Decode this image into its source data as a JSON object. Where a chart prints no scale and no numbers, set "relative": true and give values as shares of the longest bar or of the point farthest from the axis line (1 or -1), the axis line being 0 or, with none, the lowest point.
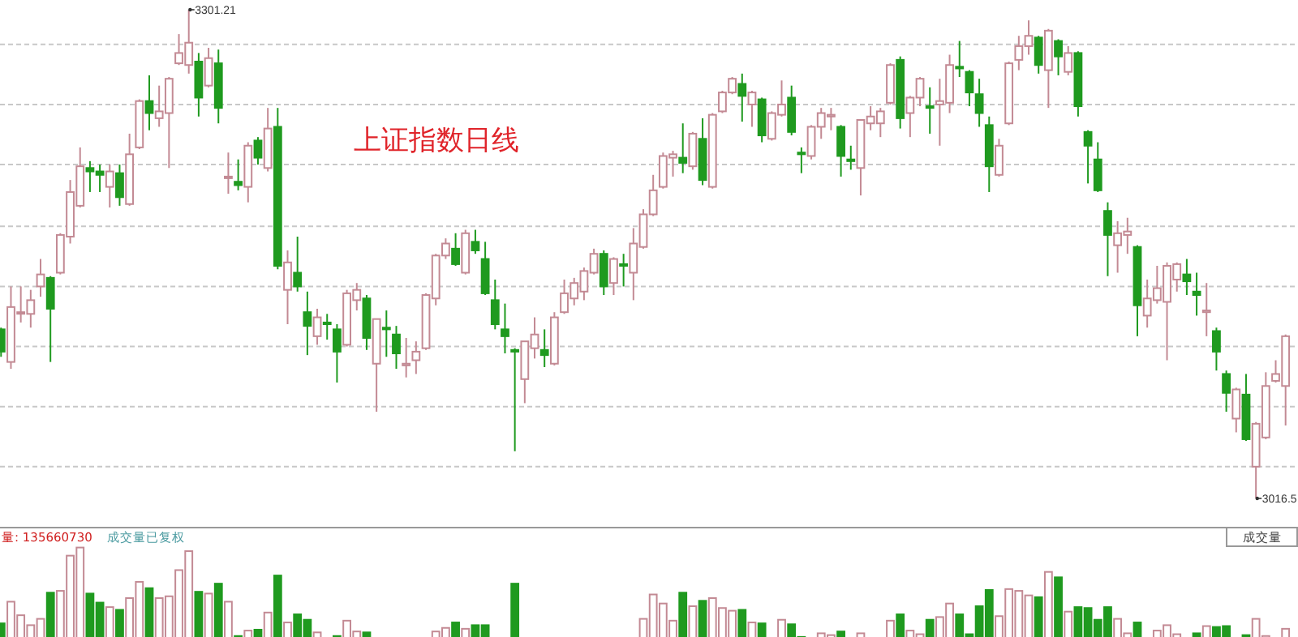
{
  "chart_data": [
    {
      "type": "candlestick",
      "title": "上证指数日线",
      "tick_labels": false,
      "grid": "y",
      "yticks": [
        {
          "value": 3281,
          "label": null
        },
        {
          "value": 3246,
          "label": null
        },
        {
          "value": 3211,
          "label": null
        },
        {
          "value": 3175,
          "label": null
        },
        {
          "value": 3140,
          "label": null
        },
        {
          "value": 3105,
          "label": null
        },
        {
          "value": 3070,
          "label": null
        },
        {
          "value": 3035,
          "label": null
        }
      ],
      "categories": [
        null,
        null,
        null,
        null,
        null,
        null,
        null,
        null,
        null,
        null,
        null,
        null,
        null,
        null,
        null,
        null,
        null,
        null,
        null,
        null,
        null,
        null,
        null,
        null,
        null,
        null,
        null,
        null,
        null,
        null,
        null,
        null,
        null,
        null,
        null,
        null,
        null,
        null,
        null,
        null,
        null,
        null,
        null,
        null,
        null,
        null,
        null,
        null,
        null,
        null,
        null,
        null,
        null,
        null,
        null,
        null,
        null,
        null,
        null,
        null,
        null,
        null,
        null,
        null,
        null,
        null,
        null,
        null,
        null,
        null,
        null,
        null,
        null,
        null,
        null,
        null,
        null,
        null,
        null,
        null,
        null,
        null,
        null,
        null,
        null,
        null,
        null,
        null,
        null,
        null,
        null,
        null,
        null,
        null,
        null,
        null,
        null,
        null,
        null,
        null,
        null,
        null,
        null,
        null,
        null,
        null,
        null,
        null,
        null,
        null,
        null,
        null,
        null,
        null,
        null,
        null,
        null,
        null,
        null,
        null,
        null,
        null,
        null,
        null,
        null,
        null,
        null,
        null,
        null,
        null,
        null
      ],
      "ohlc": [
        [
          3115,
          3116,
          3099,
          3102
        ],
        [
          3096,
          3140,
          3092,
          3128
        ],
        [
          3125,
          3140,
          3119,
          3125
        ],
        [
          3124,
          3138,
          3116,
          3132
        ],
        [
          3140,
          3156,
          3134,
          3147
        ],
        [
          3145,
          3146,
          3096,
          3127
        ],
        [
          3148,
          3171,
          3147,
          3170
        ],
        [
          3169,
          3202,
          3165,
          3195
        ],
        [
          3187,
          3221,
          3186,
          3210
        ],
        [
          3209,
          3213,
          3195,
          3207
        ],
        [
          3207,
          3211,
          3195,
          3205
        ],
        [
          3198,
          3211,
          3186,
          3207
        ],
        [
          3206,
          3211,
          3187,
          3192
        ],
        [
          3188,
          3229,
          3187,
          3217
        ],
        [
          3221,
          3249,
          3220,
          3248
        ],
        [
          3248,
          3263,
          3231,
          3241
        ],
        [
          3238,
          3257,
          3233,
          3242
        ],
        [
          3241,
          3262,
          3209,
          3261
        ],
        [
          3270,
          3287,
          3269,
          3276
        ],
        [
          3269,
          3301.21,
          3264,
          3282
        ],
        [
          3271,
          3276,
          3239,
          3250
        ],
        [
          3257,
          3279,
          3256,
          3273
        ],
        [
          3270,
          3278,
          3235,
          3244
        ],
        [
          3204,
          3218,
          3194,
          3204
        ],
        [
          3201,
          3214,
          3196,
          3199
        ],
        [
          3198,
          3224,
          3189,
          3222
        ],
        [
          3225,
          3227,
          3211,
          3215
        ],
        [
          3209,
          3244,
          3207,
          3232
        ],
        [
          3233,
          3244,
          3150,
          3152
        ],
        [
          3138,
          3161,
          3118,
          3154
        ],
        [
          3148,
          3169,
          3137,
          3140
        ],
        [
          3125,
          3137,
          3100,
          3117
        ],
        [
          3111,
          3127,
          3106,
          3122
        ],
        [
          3119,
          3124,
          3109,
          3118
        ],
        [
          3115,
          3118,
          3084,
          3102
        ],
        [
          3106,
          3138,
          3105,
          3136
        ],
        [
          3132,
          3142,
          3126,
          3138
        ],
        [
          3133,
          3135,
          3103,
          3110
        ],
        [
          3095,
          3121,
          3067,
          3121
        ],
        [
          3116,
          3126,
          3099,
          3115
        ],
        [
          3112,
          3117,
          3092,
          3101
        ],
        [
          3094,
          3110,
          3087,
          3095
        ],
        [
          3097,
          3108,
          3089,
          3102
        ],
        [
          3104,
          3136,
          3103,
          3135
        ],
        [
          3133,
          3159,
          3129,
          3158
        ],
        [
          3158,
          3168,
          3156,
          3165
        ],
        [
          3162,
          3171,
          3152,
          3153
        ],
        [
          3148,
          3173,
          3147,
          3171
        ],
        [
          3166,
          3173,
          3159,
          3161
        ],
        [
          3156,
          3166,
          3135,
          3136
        ],
        [
          3132,
          3144,
          3115,
          3118
        ],
        [
          3115,
          3130,
          3101,
          3111
        ],
        [
          3103,
          3104,
          3044,
          3102
        ],
        [
          3086,
          3108,
          3072,
          3108
        ],
        [
          3104,
          3122,
          3098,
          3112
        ],
        [
          3103,
          3115,
          3093,
          3100
        ],
        [
          3095,
          3125,
          3094,
          3122
        ],
        [
          3125,
          3144,
          3124,
          3136
        ],
        [
          3133,
          3145,
          3129,
          3142
        ],
        [
          3137,
          3151,
          3132,
          3149
        ],
        [
          3148,
          3162,
          3147,
          3159
        ],
        [
          3159,
          3161,
          3135,
          3140
        ],
        [
          3142,
          3157,
          3135,
          3156
        ],
        [
          3153,
          3159,
          3140,
          3152
        ],
        [
          3148,
          3174,
          3132,
          3165
        ],
        [
          3163,
          3185,
          3162,
          3182
        ],
        [
          3182,
          3205,
          3181,
          3196
        ],
        [
          3198,
          3218,
          3197,
          3216
        ],
        [
          3215,
          3219,
          3204,
          3217
        ],
        [
          3215,
          3235,
          3206,
          3212
        ],
        [
          3210,
          3230,
          3208,
          3229
        ],
        [
          3226,
          3238,
          3199,
          3202
        ],
        [
          3198,
          3241,
          3197,
          3240
        ],
        [
          3242,
          3254,
          3241,
          3253
        ],
        [
          3253,
          3262,
          3252,
          3261
        ],
        [
          3258,
          3264,
          3236,
          3251
        ],
        [
          3246,
          3254,
          3233,
          3253
        ],
        [
          3249,
          3250,
          3224,
          3228
        ],
        [
          3226,
          3242,
          3225,
          3241
        ],
        [
          3240,
          3260,
          3239,
          3246
        ],
        [
          3250,
          3257,
          3228,
          3230
        ],
        [
          3218,
          3221,
          3206,
          3217
        ],
        [
          3216,
          3234,
          3214,
          3233
        ],
        [
          3233,
          3244,
          3226,
          3241
        ],
        [
          3239,
          3244,
          3231,
          3240
        ],
        [
          3233,
          3234,
          3204,
          3216
        ],
        [
          3214,
          3222,
          3208,
          3213
        ],
        [
          3209,
          3237,
          3193,
          3237
        ],
        [
          3235,
          3245,
          3231,
          3239
        ],
        [
          3235,
          3244,
          3227,
          3242
        ],
        [
          3247,
          3270,
          3246,
          3269
        ],
        [
          3272,
          3274,
          3232,
          3238
        ],
        [
          3241,
          3251,
          3227,
          3250
        ],
        [
          3250,
          3262,
          3245,
          3261
        ],
        [
          3245,
          3256,
          3229,
          3244
        ],
        [
          3246,
          3261,
          3222,
          3248
        ],
        [
          3247,
          3275,
          3241,
          3269
        ],
        [
          3268,
          3283,
          3262,
          3267
        ],
        [
          3265,
          3266,
          3245,
          3253
        ],
        [
          3252,
          3261,
          3233,
          3241
        ],
        [
          3234,
          3239,
          3195,
          3210
        ],
        [
          3205,
          3226,
          3204,
          3222
        ],
        [
          3235,
          3271,
          3234,
          3270
        ],
        [
          3272,
          3286,
          3266,
          3280
        ],
        [
          3280,
          3295,
          3275,
          3286
        ],
        [
          3285,
          3286,
          3264,
          3269
        ],
        [
          3266,
          3290,
          3244,
          3289
        ],
        [
          3283,
          3284,
          3263,
          3274
        ],
        [
          3265,
          3280,
          3263,
          3276
        ],
        [
          3276,
          3277,
          3239,
          3245
        ],
        [
          3230,
          3231,
          3200,
          3222
        ],
        [
          3214,
          3224,
          3195,
          3196
        ],
        [
          3184,
          3189,
          3146,
          3170
        ],
        [
          3164,
          3178,
          3148,
          3171
        ],
        [
          3170,
          3180,
          3159,
          3172
        ],
        [
          3163,
          3164,
          3111,
          3129
        ],
        [
          3123,
          3144,
          3116,
          3133
        ],
        [
          3132,
          3152,
          3130,
          3139
        ],
        [
          3131,
          3154,
          3097,
          3152
        ],
        [
          3144,
          3154,
          3137,
          3153
        ],
        [
          3147,
          3156,
          3135,
          3143
        ],
        [
          3137,
          3148,
          3123,
          3135
        ],
        [
          3125,
          3142,
          3111,
          3126
        ],
        [
          3114,
          3116,
          3091,
          3102
        ],
        [
          3089,
          3091,
          3067,
          3078
        ],
        [
          3063,
          3081,
          3055,
          3080
        ],
        [
          3077,
          3089,
          3050,
          3051
        ],
        [
          3035,
          3061,
          3016.5,
          3060
        ],
        [
          3052,
          3090,
          3051,
          3082
        ],
        [
          3085,
          3097,
          3084,
          3089
        ],
        [
          3082,
          3112,
          3059,
          3111
        ]
      ],
      "colors": [
        "#1f9a1f",
        "#c38a94",
        "#c38a94",
        "#c38a94",
        "#c38a94",
        "#1f9a1f",
        "#c38a94",
        "#c38a94",
        "#c38a94",
        "#1f9a1f",
        "#1f9a1f",
        "#c38a94",
        "#1f9a1f",
        "#c38a94",
        "#c38a94",
        "#1f9a1f",
        "#c38a94",
        "#c38a94",
        "#c38a94",
        "#c38a94",
        "#1f9a1f",
        "#c38a94",
        "#1f9a1f",
        "#c38a94",
        "#1f9a1f",
        "#c38a94",
        "#1f9a1f",
        "#c38a94",
        "#1f9a1f",
        "#c38a94",
        "#1f9a1f",
        "#1f9a1f",
        "#c38a94",
        "#1f9a1f",
        "#1f9a1f",
        "#c38a94",
        "#c38a94",
        "#1f9a1f",
        "#c38a94",
        "#1f9a1f",
        "#1f9a1f",
        "#c38a94",
        "#c38a94",
        "#c38a94",
        "#c38a94",
        "#c38a94",
        "#1f9a1f",
        "#c38a94",
        "#1f9a1f",
        "#1f9a1f",
        "#1f9a1f",
        "#1f9a1f",
        "#1f9a1f",
        "#c38a94",
        "#c38a94",
        "#1f9a1f",
        "#c38a94",
        "#c38a94",
        "#c38a94",
        "#c38a94",
        "#c38a94",
        "#1f9a1f",
        "#c38a94",
        "#1f9a1f",
        "#c38a94",
        "#c38a94",
        "#c38a94",
        "#c38a94",
        "#c38a94",
        "#1f9a1f",
        "#c38a94",
        "#1f9a1f",
        "#c38a94",
        "#c38a94",
        "#c38a94",
        "#1f9a1f",
        "#c38a94",
        "#1f9a1f",
        "#c38a94",
        "#c38a94",
        "#1f9a1f",
        "#1f9a1f",
        "#c38a94",
        "#c38a94",
        "#c38a94",
        "#1f9a1f",
        "#1f9a1f",
        "#c38a94",
        "#c38a94",
        "#c38a94",
        "#c38a94",
        "#1f9a1f",
        "#c38a94",
        "#c38a94",
        "#1f9a1f",
        "#c38a94",
        "#c38a94",
        "#1f9a1f",
        "#1f9a1f",
        "#1f9a1f",
        "#1f9a1f",
        "#c38a94",
        "#c38a94",
        "#c38a94",
        "#c38a94",
        "#1f9a1f",
        "#c38a94",
        "#1f9a1f",
        "#c38a94",
        "#1f9a1f",
        "#1f9a1f",
        "#1f9a1f",
        "#1f9a1f",
        "#c38a94",
        "#c38a94",
        "#1f9a1f",
        "#c38a94",
        "#c38a94",
        "#c38a94",
        "#c38a94",
        "#1f9a1f",
        "#1f9a1f",
        "#c38a94",
        "#1f9a1f",
        "#1f9a1f",
        "#c38a94",
        "#1f9a1f",
        "#c38a94",
        "#c38a94",
        "#c38a94",
        "#c38a94"
      ],
      "annotations": [
        "3301.21",
        "3016.5"
      ]
    },
    {
      "type": "bar",
      "relative": true,
      "categories": [
        null,
        null,
        null,
        null,
        null,
        null,
        null,
        null,
        null,
        null,
        null,
        null,
        null,
        null,
        null,
        null,
        null,
        null,
        null,
        null,
        null,
        null,
        null,
        null,
        null,
        null,
        null,
        null,
        null,
        null,
        null,
        null,
        null,
        null,
        null,
        null,
        null,
        null,
        null,
        null,
        null,
        null,
        null,
        null,
        null,
        null,
        null,
        null,
        null,
        null,
        null,
        null,
        null,
        null,
        null,
        null,
        null,
        null,
        null,
        null,
        null,
        null,
        null,
        null,
        null,
        null,
        null,
        null,
        null,
        null,
        null,
        null,
        null,
        null,
        null,
        null,
        null,
        null,
        null,
        null,
        null,
        null,
        null,
        null,
        null,
        null,
        null,
        null,
        null,
        null,
        null,
        null,
        null,
        null,
        null,
        null,
        null,
        null,
        null,
        null,
        null,
        null,
        null,
        null,
        null,
        null,
        null,
        null,
        null,
        null,
        null,
        null,
        null,
        null,
        null,
        null,
        null,
        null,
        null,
        null,
        null,
        null,
        null,
        null,
        null,
        null,
        null,
        null,
        null,
        null,
        null
      ],
      "values": [
        0.16,
        0.4,
        0.25,
        0.14,
        0.21,
        0.5,
        0.52,
        0.91,
        1,
        0.49,
        0.39,
        0.34,
        0.31,
        0.44,
        0.62,
        0.55,
        0.44,
        0.46,
        0.75,
        0.96,
        0.51,
        0.49,
        0.6,
        0.4,
        0.02,
        0.08,
        0.09,
        0.28,
        0.69,
        0.17,
        0.26,
        0.2,
        0.06,
        null,
        0.02,
        0.19,
        0.07,
        0.06,
        null,
        null,
        null,
        null,
        null,
        null,
        0.07,
        0.11,
        0.17,
        0.1,
        0.14,
        0.14,
        null,
        null,
        0.6,
        null,
        null,
        null,
        null,
        null,
        null,
        null,
        null,
        null,
        null,
        null,
        null,
        0.21,
        0.48,
        0.38,
        0.19,
        0.5,
        0.35,
        0.41,
        0.44,
        0.33,
        0.3,
        0.31,
        0.17,
        0.16,
        null,
        0.2,
        0.15,
        0.01,
        null,
        0.05,
        0.03,
        0.07,
        null,
        0.05,
        null,
        null,
        0.19,
        0.26,
        0.08,
        0.04,
        0.2,
        0.23,
        0.38,
        0.26,
        0.04,
        0.35,
        0.53,
        0.24,
        0.54,
        0.52,
        0.47,
        0.45,
        0.73,
        0.67,
        0.29,
        0.34,
        0.33,
        0.2,
        0.34,
        0.21,
        0.05,
        0.17,
        null,
        0.08,
        0.14,
        0.04,
        null,
        0.05,
        0.13,
        0.12,
        0.13,
        null,
        0.03,
        0.21,
        0.02,
        null,
        0.1
      ],
      "colors": [
        "#1f9a1f",
        "#c38a94",
        "#c38a94",
        "#c38a94",
        "#c38a94",
        "#1f9a1f",
        "#c38a94",
        "#c38a94",
        "#c38a94",
        "#1f9a1f",
        "#1f9a1f",
        "#c38a94",
        "#1f9a1f",
        "#c38a94",
        "#c38a94",
        "#1f9a1f",
        "#c38a94",
        "#c38a94",
        "#c38a94",
        "#c38a94",
        "#1f9a1f",
        "#c38a94",
        "#1f9a1f",
        "#c38a94",
        "#1f9a1f",
        "#c38a94",
        "#1f9a1f",
        "#c38a94",
        "#1f9a1f",
        "#c38a94",
        "#1f9a1f",
        "#1f9a1f",
        "#c38a94",
        "#1f9a1f",
        "#1f9a1f",
        "#c38a94",
        "#c38a94",
        "#1f9a1f",
        "#c38a94",
        "#1f9a1f",
        "#1f9a1f",
        "#c38a94",
        "#c38a94",
        "#c38a94",
        "#c38a94",
        "#c38a94",
        "#1f9a1f",
        "#c38a94",
        "#1f9a1f",
        "#1f9a1f",
        "#1f9a1f",
        "#1f9a1f",
        "#1f9a1f",
        "#c38a94",
        "#c38a94",
        "#1f9a1f",
        "#c38a94",
        "#c38a94",
        "#c38a94",
        "#c38a94",
        "#c38a94",
        "#1f9a1f",
        "#c38a94",
        "#1f9a1f",
        "#c38a94",
        "#c38a94",
        "#c38a94",
        "#c38a94",
        "#c38a94",
        "#1f9a1f",
        "#c38a94",
        "#1f9a1f",
        "#c38a94",
        "#c38a94",
        "#c38a94",
        "#1f9a1f",
        "#c38a94",
        "#1f9a1f",
        "#c38a94",
        "#c38a94",
        "#1f9a1f",
        "#1f9a1f",
        "#c38a94",
        "#c38a94",
        "#c38a94",
        "#1f9a1f",
        "#1f9a1f",
        "#c38a94",
        "#c38a94",
        "#c38a94",
        "#c38a94",
        "#1f9a1f",
        "#c38a94",
        "#c38a94",
        "#1f9a1f",
        "#c38a94",
        "#c38a94",
        "#1f9a1f",
        "#1f9a1f",
        "#1f9a1f",
        "#1f9a1f",
        "#c38a94",
        "#c38a94",
        "#c38a94",
        "#c38a94",
        "#1f9a1f",
        "#c38a94",
        "#1f9a1f",
        "#c38a94",
        "#1f9a1f",
        "#1f9a1f",
        "#1f9a1f",
        "#1f9a1f",
        "#c38a94",
        "#c38a94",
        "#1f9a1f",
        "#c38a94",
        "#c38a94",
        "#c38a94",
        "#c38a94",
        "#1f9a1f",
        "#1f9a1f",
        "#c38a94",
        "#1f9a1f",
        "#1f9a1f",
        "#c38a94",
        "#1f9a1f",
        "#c38a94",
        "#c38a94",
        "#c38a94",
        "#c38a94"
      ],
      "annotations": [
        "量: 135660730",
        "成交量已复权",
        "成交量"
      ]
    }
  ]
}
